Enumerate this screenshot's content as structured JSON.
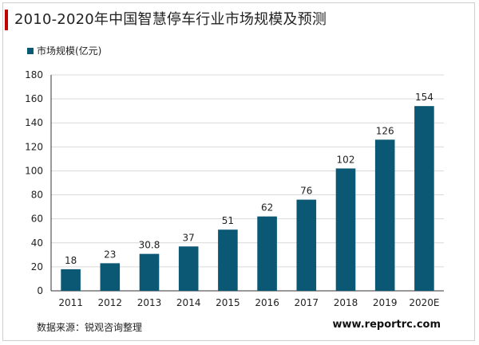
{
  "header": {
    "title": "2010-2020年中国智慧停车行业市场规模及预测"
  },
  "legend": {
    "label": "市场规模(亿元)"
  },
  "footer": {
    "source": "数据来源：锐观咨询整理",
    "website": "www.reportrc.com"
  },
  "colors": {
    "bar": "#0b5875",
    "accent": "#c00000",
    "axis": "#333333",
    "grid": "#d9d9d9"
  },
  "chart_data": {
    "type": "bar",
    "title": "2010-2020年中国智慧停车行业市场规模及预测",
    "xlabel": "",
    "ylabel": "",
    "categories": [
      "2011",
      "2012",
      "2013",
      "2014",
      "2015",
      "2016",
      "2017",
      "2018",
      "2019",
      "2020E"
    ],
    "series": [
      {
        "name": "市场规模(亿元)",
        "values": [
          18,
          23,
          30.8,
          37,
          51,
          62,
          76,
          102,
          126,
          154
        ],
        "labels": [
          "18",
          "23",
          "30.8",
          "37",
          "51",
          "62",
          "76",
          "102",
          "126",
          "154"
        ]
      }
    ],
    "ylim": [
      0,
      180
    ],
    "yticks": [
      0,
      20,
      40,
      60,
      80,
      100,
      120,
      140,
      160,
      180
    ],
    "grid": true,
    "legend_position": "top-left"
  }
}
